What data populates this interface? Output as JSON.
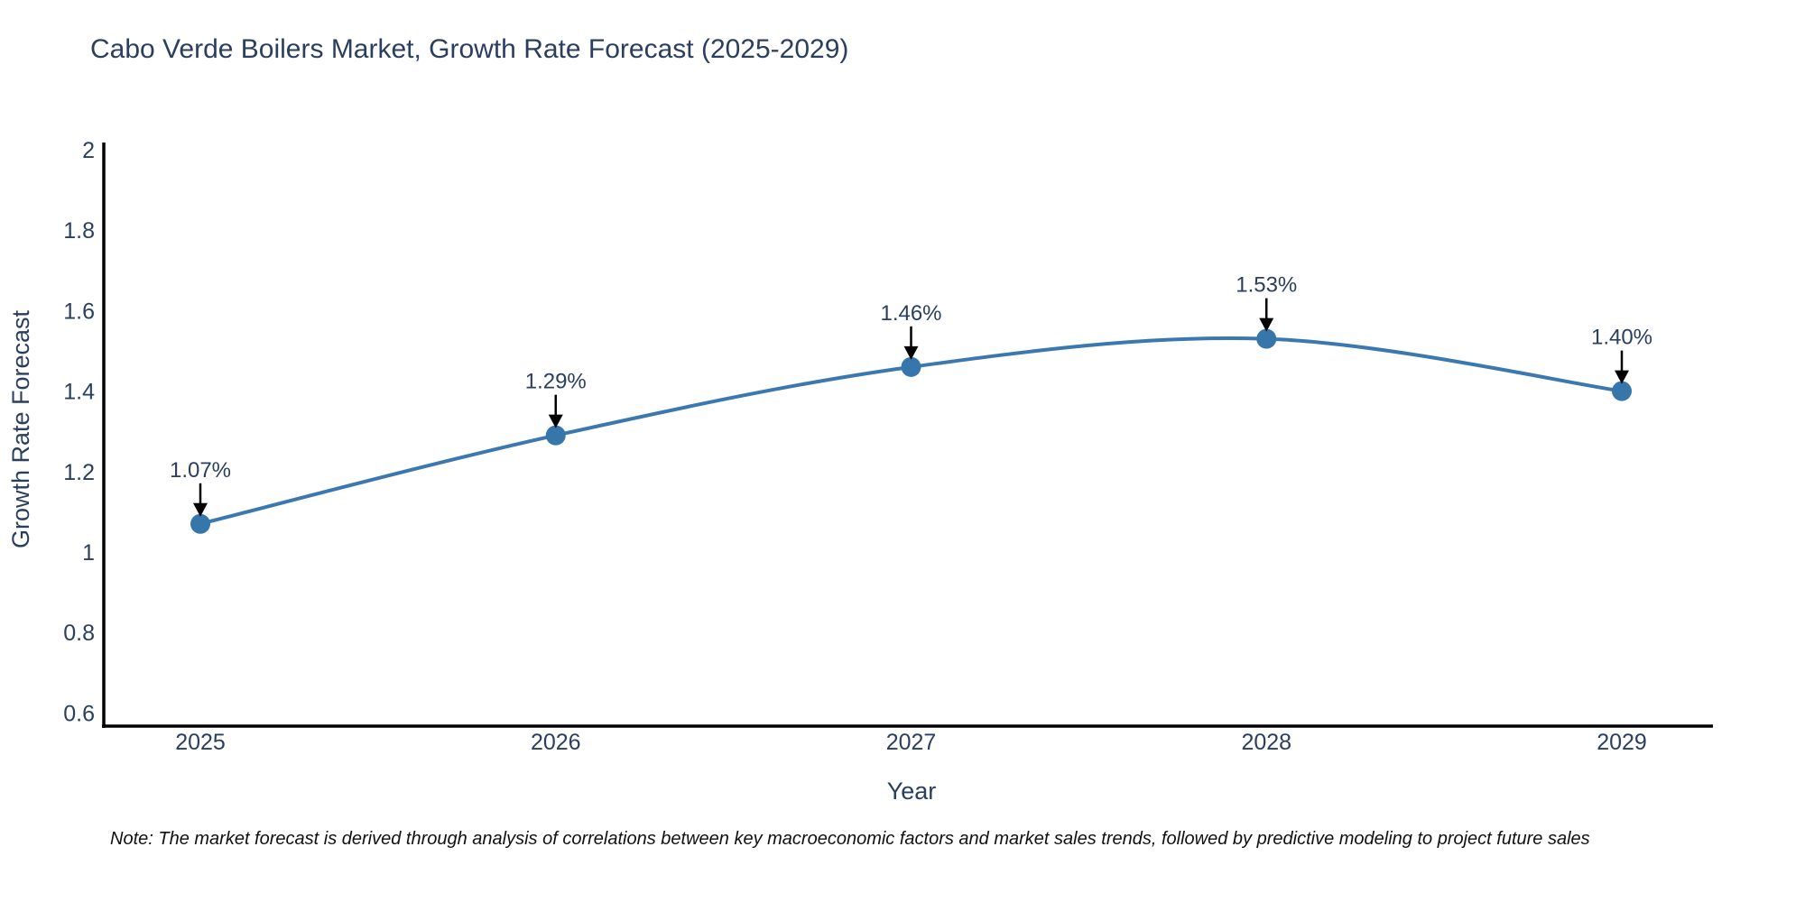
{
  "title": "Cabo Verde Boilers Market, Growth Rate Forecast (2025-2029)",
  "note": "Note: The market forecast is derived through analysis of correlations between key macroeconomic factors and market sales trends, followed by predictive modeling to project future sales",
  "colors": {
    "title_text": "#2a3f5f",
    "axis_text": "#2a3f5f",
    "axis_line": "#000000",
    "line": "#3c78b0",
    "marker": "#3776ab",
    "annotation_text": "#2a3f5f",
    "annotation_arrow": "#000000",
    "background": "#ffffff"
  },
  "chart_data": {
    "type": "line",
    "title": "Cabo Verde Boilers Market, Growth Rate Forecast (2025-2029)",
    "xlabel": "Year",
    "ylabel": "Growth Rate Forecast",
    "categories": [
      "2025",
      "2026",
      "2027",
      "2028",
      "2029"
    ],
    "values": [
      1.07,
      1.29,
      1.46,
      1.53,
      1.4
    ],
    "point_labels": [
      "1.07%",
      "1.29%",
      "1.46%",
      "1.53%",
      "1.40%"
    ],
    "ylim": [
      0.6,
      2.0
    ],
    "yticks": [
      2,
      1.8,
      1.6,
      1.4,
      1.2,
      1,
      0.8,
      0.6
    ],
    "ytick_labels": [
      "2",
      "1.8",
      "1.6",
      "1.4",
      "1.2",
      "1",
      "0.8",
      "0.6"
    ],
    "grid": false,
    "legend": "none",
    "line_style": "spline",
    "markers": true,
    "annotations": "value label with downward arrow above each data point"
  }
}
